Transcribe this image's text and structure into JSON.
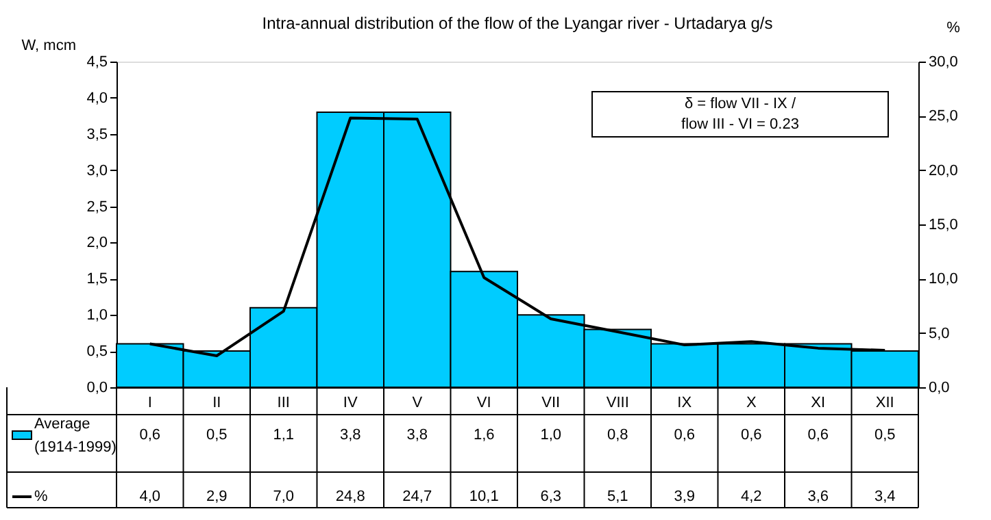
{
  "chart_data": {
    "type": "bar",
    "title": "Intra-annual distribution of the flow of the Lyangar river - Urtadarya g/s",
    "ylabel": "W, mcm",
    "y2label": "%",
    "categories": [
      "I",
      "II",
      "III",
      "IV",
      "V",
      "VI",
      "VII",
      "VIII",
      "IX",
      "X",
      "XI",
      "XII"
    ],
    "series": [
      {
        "name": "Average (1914-1999)",
        "color": "#00ccff",
        "values": [
          0.6,
          0.5,
          1.1,
          3.8,
          3.8,
          1.6,
          1.0,
          0.8,
          0.6,
          0.6,
          0.6,
          0.5
        ],
        "value_labels": [
          "0,6",
          "0,5",
          "1,1",
          "3,8",
          "3,8",
          "1,6",
          "1,0",
          "0,8",
          "0,6",
          "0,6",
          "0,6",
          "0,5"
        ]
      },
      {
        "name": "%",
        "type": "line",
        "axis": "y2",
        "color": "#000000",
        "values": [
          4.0,
          2.9,
          7.0,
          24.8,
          24.7,
          10.1,
          6.3,
          5.1,
          3.9,
          4.2,
          3.6,
          3.4
        ],
        "value_labels": [
          "4,0",
          "2,9",
          "7,0",
          "24,8",
          "24,7",
          "10,1",
          "6,3",
          "5,1",
          "3,9",
          "4,2",
          "3,6",
          "3,4"
        ]
      }
    ],
    "ylim": [
      0,
      4.5
    ],
    "yticks": [
      {
        "value": 0,
        "label": "0,0"
      },
      {
        "value": 0.5,
        "label": "0,5"
      },
      {
        "value": 1,
        "label": "1,0"
      },
      {
        "value": 1.5,
        "label": "1,5"
      },
      {
        "value": 2,
        "label": "2,0"
      },
      {
        "value": 2.5,
        "label": "2,5"
      },
      {
        "value": 3,
        "label": "3,0"
      },
      {
        "value": 3.5,
        "label": "3,5"
      },
      {
        "value": 4,
        "label": "4,0"
      },
      {
        "value": 4.5,
        "label": "4,5"
      }
    ],
    "y2lim": [
      0,
      30
    ],
    "y2ticks": [
      {
        "value": 0,
        "label": "0,0"
      },
      {
        "value": 5,
        "label": "5,0"
      },
      {
        "value": 10,
        "label": "10,0"
      },
      {
        "value": 15,
        "label": "15,0"
      },
      {
        "value": 20,
        "label": "20,0"
      },
      {
        "value": 25,
        "label": "25,0"
      },
      {
        "value": 30,
        "label": "30,0"
      }
    ],
    "annotations": [
      "δ = flow VII - IX /\nflow III - VI = 0.23"
    ],
    "legend": "bottom",
    "grid": false
  }
}
